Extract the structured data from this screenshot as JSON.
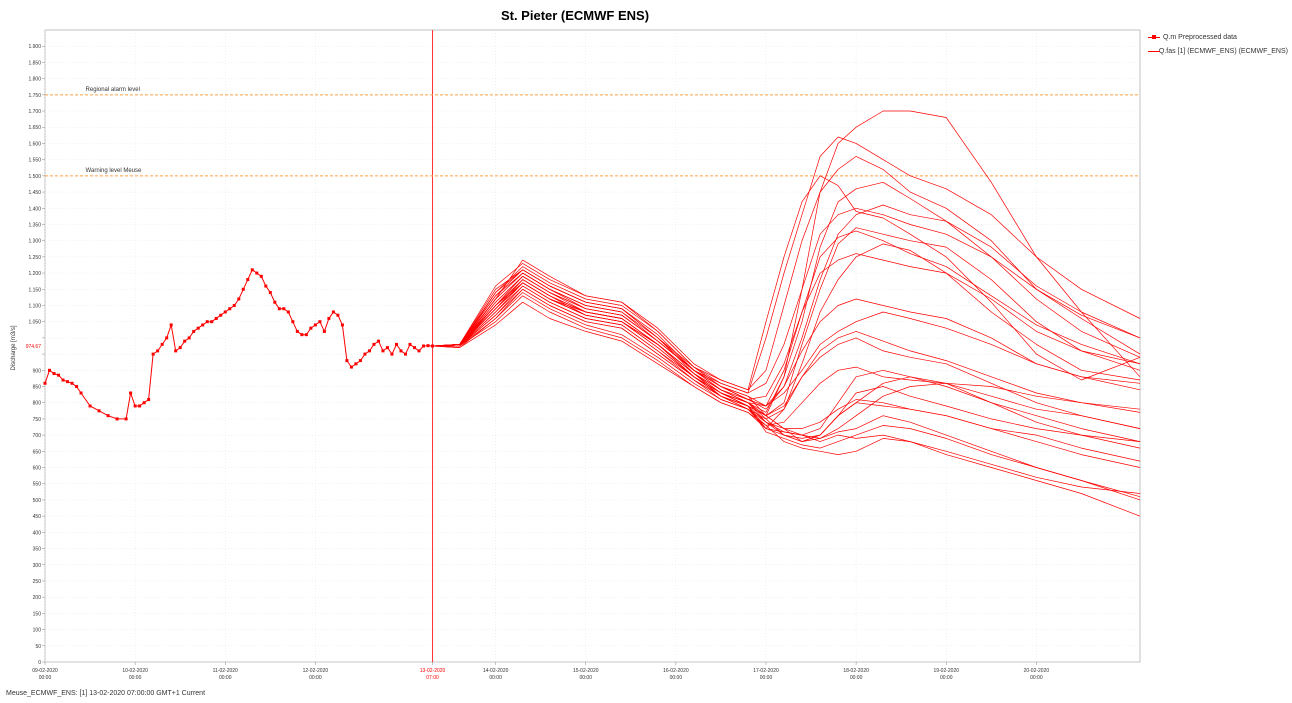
{
  "chart_data": {
    "type": "line",
    "title": "St. Pieter (ECMWF ENS)",
    "ylabel": "Discharge [m3/s]",
    "xlabel": "",
    "ylim": [
      0,
      1950
    ],
    "xlim": [
      0,
      12.15
    ],
    "y_ticks": [
      0,
      50,
      100,
      150,
      200,
      250,
      300,
      350,
      400,
      450,
      500,
      550,
      600,
      650,
      700,
      750,
      800,
      850,
      900,
      950,
      1000,
      1050,
      1100,
      1150,
      1200,
      1250,
      1300,
      1350,
      1400,
      1450,
      1500,
      1550,
      1600,
      1650,
      1700,
      1750,
      1800,
      1850,
      1900
    ],
    "y_tick_labels": [
      "0",
      "50",
      "100",
      "150",
      "200",
      "250",
      "300",
      "350",
      "400",
      "450",
      "500",
      "550",
      "600",
      "650",
      "700",
      "750",
      "800",
      "850",
      "900",
      "",
      "",
      "1.050",
      "1.100",
      "1.150",
      "1.200",
      "1.250",
      "1.300",
      "1.350",
      "1.400",
      "1.450",
      "1.500",
      "1.550",
      "1.600",
      "1.650",
      "1.700",
      "1.750",
      "1.800",
      "1.850",
      "1.900"
    ],
    "x_ticks": [
      {
        "x": 0,
        "date": "09-02-2020",
        "time": "00:00",
        "highlight": false
      },
      {
        "x": 1,
        "date": "10-02-2020",
        "time": "00:00",
        "highlight": false
      },
      {
        "x": 2,
        "date": "11-02-2020",
        "time": "00:00",
        "highlight": false
      },
      {
        "x": 3,
        "date": "12-02-2020",
        "time": "00:00",
        "highlight": false
      },
      {
        "x": 4.3,
        "date": "13-02-2020",
        "time": "07:00",
        "highlight": true
      },
      {
        "x": 5,
        "date": "14-02-2020",
        "time": "00:00",
        "highlight": false
      },
      {
        "x": 6,
        "date": "15-02-2020",
        "time": "00:00",
        "highlight": false
      },
      {
        "x": 7,
        "date": "16-02-2020",
        "time": "00:00",
        "highlight": false
      },
      {
        "x": 8,
        "date": "17-02-2020",
        "time": "00:00",
        "highlight": false
      },
      {
        "x": 9,
        "date": "18-02-2020",
        "time": "00:00",
        "highlight": false
      },
      {
        "x": 10,
        "date": "19-02-2020",
        "time": "00:00",
        "highlight": false
      },
      {
        "x": 11,
        "date": "20-02-2020",
        "time": "00:00",
        "highlight": false
      }
    ],
    "current_value_label": "974.67",
    "current_value": 974.67,
    "forecast_time_x": 4.3,
    "thresholds": [
      {
        "name": "Regional alarm level",
        "value": 1750,
        "color": "#ffa040"
      },
      {
        "name": "Warning level Meuse",
        "value": 1500,
        "color": "#ffa040"
      }
    ],
    "grid": true,
    "legend_position": "top-right",
    "series_color": "#ff0000",
    "legend": [
      {
        "name": "Q.m Preprocessed data",
        "style": "line-points"
      },
      {
        "name": "Q.fas [1] (ECMWF_ENS) (ECMWF_ENS)",
        "style": "line"
      }
    ],
    "observed": {
      "name": "Q.m Preprocessed data",
      "x": [
        0,
        0.05,
        0.1,
        0.15,
        0.2,
        0.25,
        0.3,
        0.35,
        0.4,
        0.5,
        0.6,
        0.7,
        0.8,
        0.9,
        0.95,
        1.0,
        1.05,
        1.1,
        1.15,
        1.2,
        1.25,
        1.3,
        1.35,
        1.4,
        1.45,
        1.5,
        1.55,
        1.6,
        1.65,
        1.7,
        1.75,
        1.8,
        1.85,
        1.9,
        1.95,
        2.0,
        2.05,
        2.1,
        2.15,
        2.2,
        2.25,
        2.3,
        2.35,
        2.4,
        2.45,
        2.5,
        2.55,
        2.6,
        2.65,
        2.7,
        2.75,
        2.8,
        2.85,
        2.9,
        2.95,
        3.0,
        3.05,
        3.1,
        3.15,
        3.2,
        3.25,
        3.3,
        3.35,
        3.4,
        3.45,
        3.5,
        3.55,
        3.6,
        3.65,
        3.7,
        3.75,
        3.8,
        3.85,
        3.9,
        3.95,
        4.0,
        4.05,
        4.1,
        4.15,
        4.2,
        4.25,
        4.3
      ],
      "y": [
        860,
        900,
        890,
        885,
        870,
        865,
        860,
        850,
        830,
        790,
        775,
        760,
        750,
        750,
        830,
        790,
        790,
        800,
        810,
        950,
        960,
        980,
        1000,
        1040,
        960,
        970,
        990,
        1000,
        1020,
        1030,
        1040,
        1050,
        1050,
        1060,
        1070,
        1080,
        1090,
        1100,
        1120,
        1150,
        1180,
        1210,
        1200,
        1190,
        1160,
        1140,
        1110,
        1090,
        1090,
        1080,
        1050,
        1020,
        1010,
        1010,
        1030,
        1040,
        1050,
        1020,
        1060,
        1080,
        1070,
        1040,
        930,
        910,
        920,
        930,
        950,
        960,
        980,
        990,
        960,
        970,
        950,
        980,
        960,
        950,
        980,
        970,
        960,
        975,
        976,
        975
      ]
    },
    "ensemble": {
      "name": "Q.fas [1] (ECMWF_ENS) (ECMWF_ENS)",
      "x": [
        4.3,
        4.6,
        5.0,
        5.3,
        5.6,
        6.0,
        6.4,
        6.8,
        7.2,
        7.5,
        7.8,
        8.0,
        8.2,
        8.4,
        8.6,
        8.8,
        9.0,
        9.3,
        9.6,
        10.0,
        10.5,
        11.0,
        11.5,
        12.15
      ],
      "members": [
        [
          975,
          975,
          1120,
          1240,
          1190,
          1130,
          1110,
          1030,
          920,
          870,
          840,
          1050,
          1250,
          1420,
          1500,
          1470,
          1390,
          1370,
          1320,
          1250,
          1110,
          950,
          870,
          940
        ],
        [
          975,
          980,
          1150,
          1210,
          1160,
          1110,
          1090,
          1000,
          890,
          830,
          790,
          720,
          710,
          700,
          690,
          710,
          720,
          760,
          740,
          700,
          650,
          600,
          560,
          510
        ],
        [
          975,
          975,
          1080,
          1170,
          1120,
          1070,
          1050,
          980,
          880,
          820,
          780,
          720,
          780,
          920,
          1080,
          1180,
          1250,
          1290,
          1270,
          1200,
          1080,
          980,
          900,
          870
        ],
        [
          975,
          970,
          1060,
          1140,
          1090,
          1040,
          1010,
          940,
          860,
          810,
          780,
          730,
          680,
          660,
          650,
          640,
          650,
          690,
          680,
          640,
          600,
          560,
          520,
          450
        ],
        [
          975,
          980,
          1130,
          1200,
          1150,
          1090,
          1070,
          990,
          900,
          840,
          800,
          760,
          880,
          1150,
          1450,
          1600,
          1650,
          1700,
          1700,
          1680,
          1480,
          1250,
          1080,
          880
        ],
        [
          975,
          975,
          1100,
          1190,
          1140,
          1080,
          1060,
          980,
          890,
          840,
          800,
          760,
          800,
          980,
          1150,
          1290,
          1340,
          1320,
          1300,
          1280,
          1180,
          1050,
          960,
          900
        ],
        [
          975,
          975,
          1090,
          1180,
          1130,
          1070,
          1050,
          980,
          890,
          820,
          790,
          710,
          690,
          670,
          660,
          680,
          700,
          730,
          720,
          690,
          640,
          600,
          560,
          500
        ],
        [
          975,
          980,
          1140,
          1220,
          1170,
          1120,
          1100,
          1020,
          910,
          860,
          830,
          1000,
          1200,
          1380,
          1560,
          1620,
          1600,
          1550,
          1500,
          1460,
          1380,
          1250,
          1150,
          1060
        ],
        [
          975,
          975,
          1070,
          1160,
          1110,
          1060,
          1040,
          960,
          880,
          830,
          800,
          790,
          850,
          1000,
          1180,
          1320,
          1380,
          1410,
          1380,
          1360,
          1280,
          1160,
          1080,
          1000
        ],
        [
          975,
          975,
          1120,
          1200,
          1150,
          1100,
          1080,
          990,
          900,
          850,
          820,
          760,
          720,
          680,
          700,
          760,
          800,
          790,
          780,
          760,
          720,
          700,
          660,
          620
        ],
        [
          975,
          980,
          1100,
          1170,
          1120,
          1080,
          1060,
          980,
          880,
          820,
          780,
          750,
          780,
          880,
          940,
          980,
          1000,
          960,
          940,
          920,
          860,
          800,
          760,
          720
        ],
        [
          975,
          975,
          1050,
          1130,
          1080,
          1030,
          1000,
          930,
          850,
          800,
          770,
          720,
          700,
          680,
          690,
          720,
          760,
          820,
          850,
          860,
          850,
          820,
          800,
          780
        ],
        [
          975,
          980,
          1160,
          1230,
          1180,
          1130,
          1110,
          1020,
          910,
          870,
          840,
          900,
          1100,
          1300,
          1450,
          1520,
          1560,
          1520,
          1450,
          1400,
          1300,
          1150,
          1060,
          950
        ],
        [
          975,
          975,
          1090,
          1170,
          1120,
          1070,
          1050,
          970,
          880,
          830,
          790,
          740,
          700,
          690,
          700,
          760,
          830,
          850,
          820,
          790,
          750,
          720,
          700,
          680
        ],
        [
          975,
          970,
          1040,
          1110,
          1060,
          1020,
          990,
          920,
          850,
          800,
          770,
          730,
          740,
          800,
          860,
          900,
          910,
          880,
          870,
          860,
          820,
          780,
          760,
          720
        ],
        [
          975,
          975,
          1110,
          1190,
          1140,
          1090,
          1070,
          990,
          900,
          840,
          810,
          820,
          920,
          1080,
          1200,
          1240,
          1260,
          1240,
          1220,
          1200,
          1120,
          1020,
          960,
          920
        ],
        [
          975,
          980,
          1130,
          1210,
          1160,
          1110,
          1090,
          1000,
          910,
          850,
          810,
          780,
          850,
          960,
          1050,
          1100,
          1120,
          1100,
          1080,
          1060,
          1000,
          920,
          880,
          840
        ],
        [
          975,
          975,
          1080,
          1160,
          1110,
          1060,
          1040,
          960,
          870,
          820,
          790,
          760,
          720,
          700,
          680,
          700,
          690,
          700,
          680,
          650,
          610,
          570,
          540,
          520
        ],
        [
          975,
          975,
          1100,
          1180,
          1130,
          1080,
          1060,
          980,
          890,
          840,
          800,
          770,
          880,
          1050,
          1280,
          1420,
          1460,
          1480,
          1430,
          1360,
          1250,
          1120,
          1020,
          940
        ],
        [
          975,
          980,
          1120,
          1200,
          1150,
          1100,
          1080,
          1000,
          900,
          850,
          820,
          790,
          830,
          900,
          980,
          1020,
          1050,
          1080,
          1060,
          1030,
          980,
          920,
          880,
          860
        ],
        [
          975,
          975,
          1060,
          1150,
          1100,
          1050,
          1030,
          950,
          870,
          810,
          780,
          740,
          720,
          720,
          740,
          780,
          810,
          800,
          780,
          760,
          720,
          680,
          640,
          600
        ],
        [
          975,
          975,
          1140,
          1210,
          1160,
          1110,
          1090,
          1010,
          900,
          860,
          830,
          860,
          980,
          1150,
          1320,
          1380,
          1400,
          1380,
          1350,
          1320,
          1250,
          1150,
          1070,
          1000
        ],
        [
          975,
          980,
          1090,
          1170,
          1120,
          1070,
          1050,
          970,
          880,
          830,
          800,
          750,
          700,
          680,
          700,
          760,
          800,
          860,
          880,
          860,
          800,
          740,
          700,
          660
        ],
        [
          975,
          975,
          1070,
          1150,
          1100,
          1050,
          1030,
          950,
          870,
          820,
          790,
          760,
          790,
          880,
          960,
          1000,
          1020,
          990,
          960,
          930,
          880,
          830,
          800,
          770
        ],
        [
          975,
          975,
          1110,
          1190,
          1140,
          1090,
          1070,
          990,
          900,
          850,
          810,
          790,
          900,
          1080,
          1250,
          1310,
          1330,
          1300,
          1260,
          1220,
          1130,
          1040,
          980,
          920
        ],
        [
          975,
          980,
          1100,
          1180,
          1130,
          1080,
          1060,
          980,
          890,
          830,
          800,
          740,
          710,
          700,
          720,
          800,
          880,
          900,
          880,
          850,
          800,
          760,
          720,
          680
        ]
      ]
    }
  },
  "status_bar": {
    "text": "Meuse_ECMWF_ENS: [1] 13-02-2020 07:00:00 GMT+1 Current"
  }
}
